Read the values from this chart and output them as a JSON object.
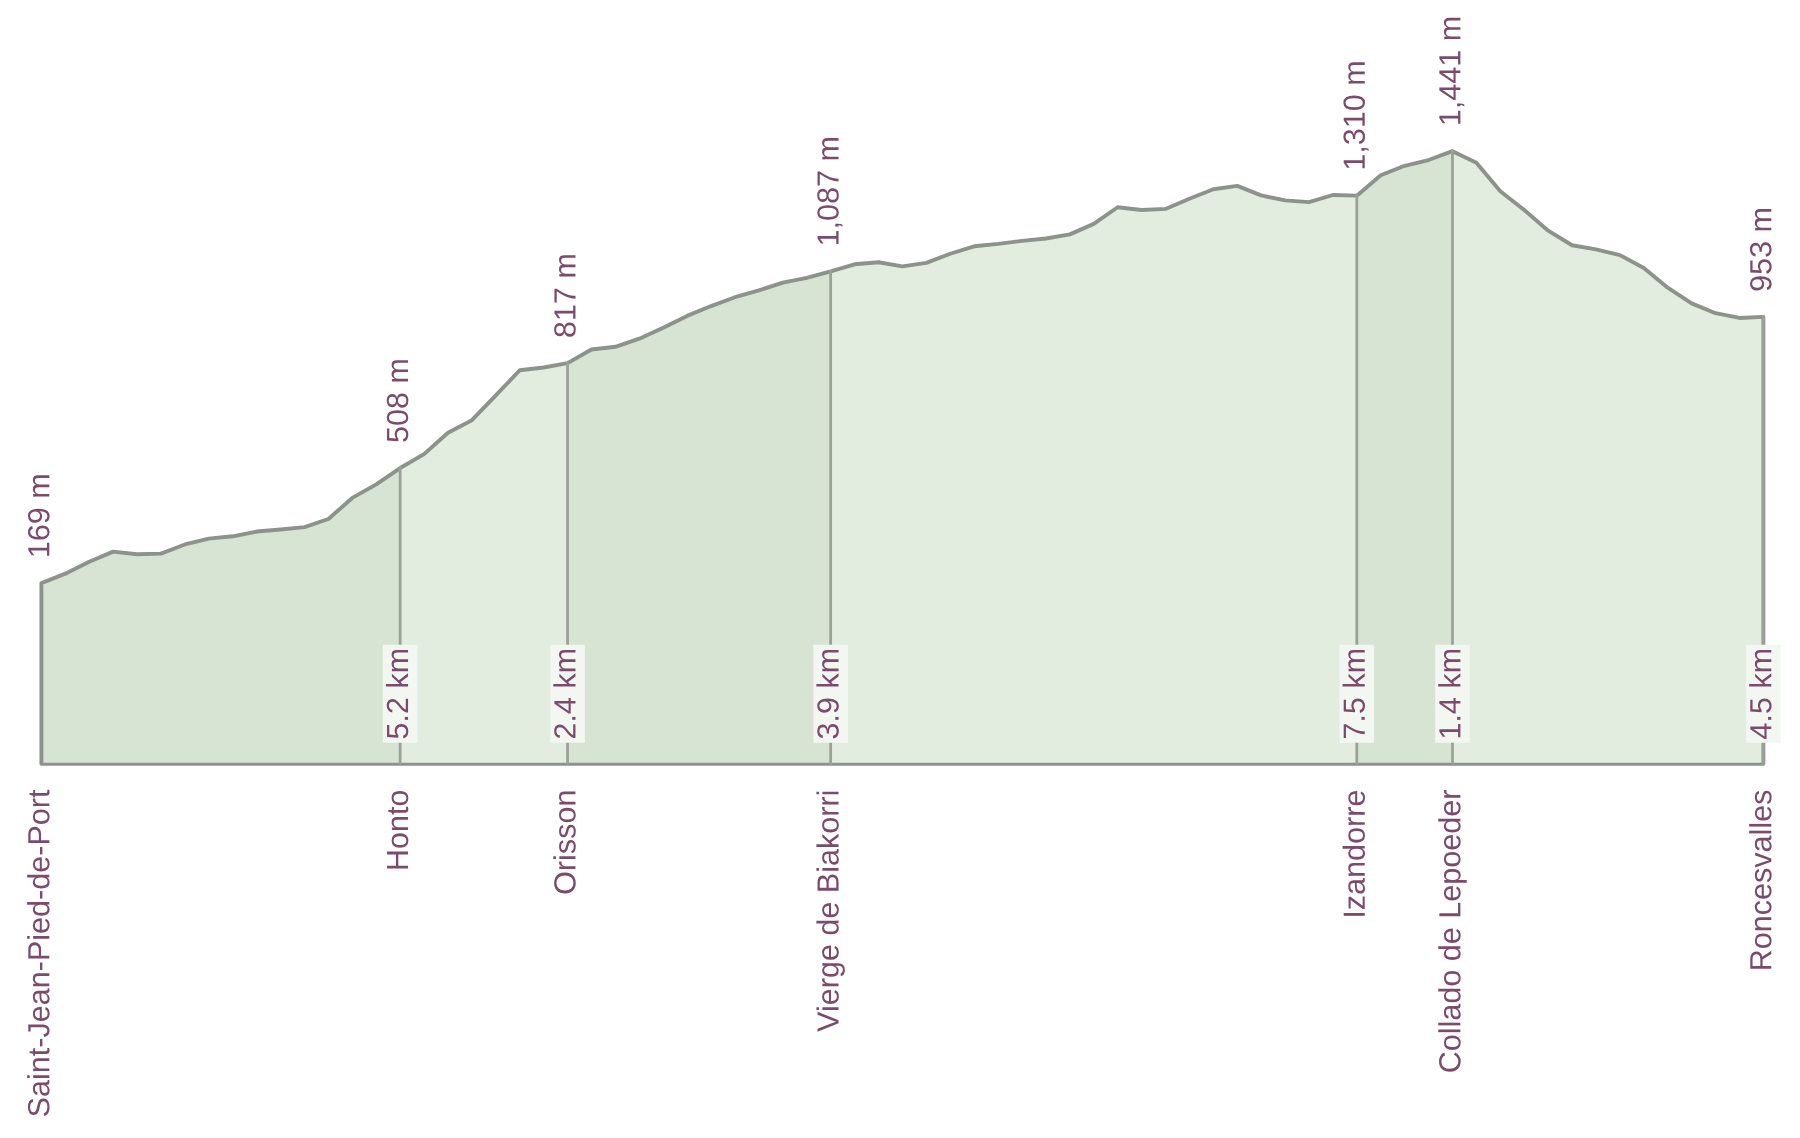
{
  "chart_data": {
    "type": "area",
    "categories": [
      "Saint-Jean-Pied-de-Port",
      null,
      null,
      null,
      null,
      null,
      null,
      null,
      null,
      null,
      null,
      null,
      null,
      null,
      null,
      "Honto",
      null,
      null,
      null,
      null,
      null,
      null,
      "Orisson",
      null,
      null,
      null,
      null,
      null,
      null,
      null,
      null,
      null,
      null,
      "Vierge de Biakorri",
      null,
      null,
      null,
      null,
      null,
      null,
      null,
      null,
      null,
      null,
      null,
      null,
      null,
      null,
      null,
      null,
      null,
      null,
      null,
      null,
      null,
      "Izandorre",
      null,
      null,
      null,
      "Collado de Lepoeder",
      null,
      null,
      null,
      null,
      null,
      null,
      null,
      null,
      null,
      null,
      null,
      null,
      "Roncesvalles"
    ],
    "values": [
      169,
      197,
      232,
      262,
      254,
      256,
      283,
      300,
      307,
      321,
      327,
      334,
      358,
      420,
      460,
      508,
      549,
      612,
      649,
      722,
      796,
      804,
      817,
      857,
      865,
      889,
      921,
      956,
      985,
      1011,
      1031,
      1054,
      1068,
      1087,
      1108,
      1114,
      1102,
      1112,
      1139,
      1161,
      1168,
      1177,
      1184,
      1196,
      1227,
      1276,
      1268,
      1271,
      1301,
      1329,
      1339,
      1311,
      1296,
      1291,
      1312,
      1310,
      1370,
      1398,
      1415,
      1441,
      1407,
      1323,
      1268,
      1207,
      1164,
      1152,
      1135,
      1097,
      1039,
      993,
      964,
      950,
      953
    ],
    "value_labels": [
      "169 m",
      null,
      null,
      null,
      null,
      null,
      null,
      null,
      null,
      null,
      null,
      null,
      null,
      null,
      null,
      "508 m",
      null,
      null,
      null,
      null,
      null,
      null,
      "817 m",
      null,
      null,
      null,
      null,
      null,
      null,
      null,
      null,
      null,
      null,
      "1,087 m",
      null,
      null,
      null,
      null,
      null,
      null,
      null,
      null,
      null,
      null,
      null,
      null,
      null,
      null,
      null,
      null,
      null,
      null,
      null,
      null,
      null,
      "1,310 m",
      null,
      null,
      null,
      "1,441 m",
      null,
      null,
      null,
      null,
      null,
      null,
      null,
      null,
      null,
      null,
      null,
      null,
      "953 m"
    ],
    "color": "#e2eddf",
    "tick_labels": "x",
    "bands": [
      {
        "axis": "x",
        "from": "Saint-Jean-Pied-de-Port",
        "to": "Honto",
        "color": "#d7e4d4"
      },
      {
        "axis": "x",
        "from": "Orisson",
        "to": "Vierge de Biakorri",
        "color": "#d7e4d4"
      },
      {
        "axis": "x",
        "from": "Izandorre",
        "to": "Collado de Lepoeder",
        "color": "#d7e4d4"
      }
    ],
    "ref_lines": [
      {
        "axis": "x",
        "value": "Honto",
        "label": "5.2 km"
      },
      {
        "axis": "x",
        "value": "Orisson",
        "label": "2.4 km"
      },
      {
        "axis": "x",
        "value": "Vierge de Biakorri",
        "label": "3.9 km"
      },
      {
        "axis": "x",
        "value": "Izandorre",
        "label": "7.5 km"
      },
      {
        "axis": "x",
        "value": "Collado de Lepoeder",
        "label": "1.4 km"
      },
      {
        "axis": "x",
        "value": "Roncesvalles",
        "label": "4.5 km"
      }
    ]
  }
}
